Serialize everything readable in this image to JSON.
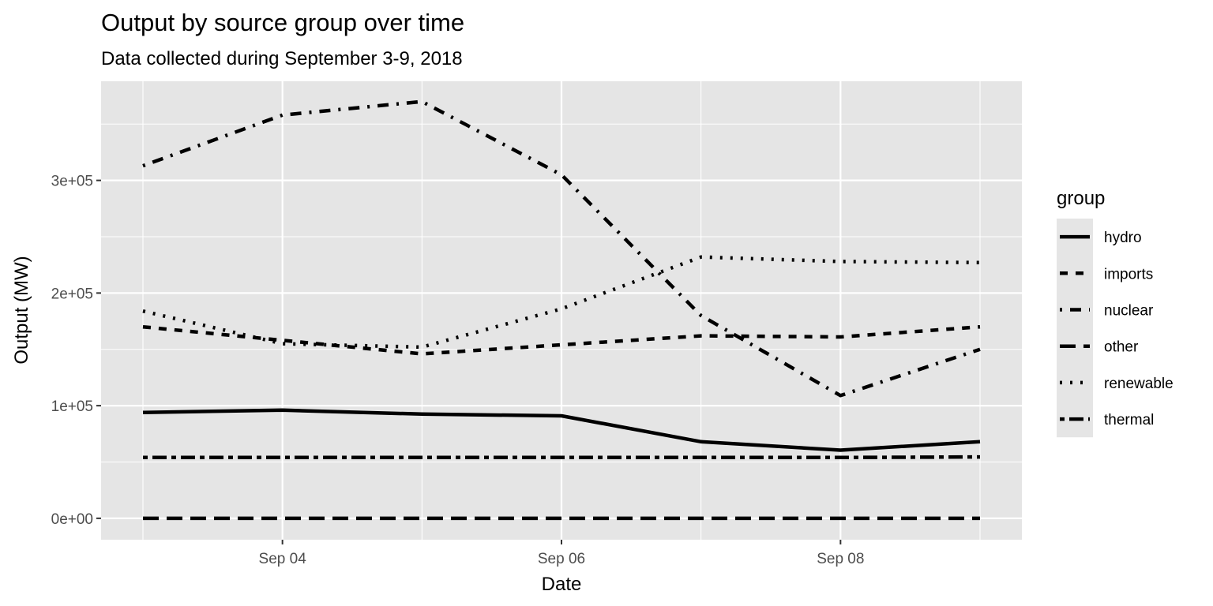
{
  "chart_data": {
    "type": "line",
    "title": "Output by source group over time",
    "subtitle": "Data collected during September 3-9, 2018",
    "xlabel": "Date",
    "ylabel": "Output (MW)",
    "x": [
      "2018-09-03",
      "2018-09-04",
      "2018-09-05",
      "2018-09-06",
      "2018-09-07",
      "2018-09-08",
      "2018-09-09"
    ],
    "x_ticks": [
      {
        "value": "2018-09-04",
        "label": "Sep 04"
      },
      {
        "value": "2018-09-06",
        "label": "Sep 06"
      },
      {
        "value": "2018-09-08",
        "label": "Sep 08"
      }
    ],
    "y_ticks": [
      {
        "value": 0,
        "label": "0e+00"
      },
      {
        "value": 100000,
        "label": "1e+05"
      },
      {
        "value": 200000,
        "label": "2e+05"
      },
      {
        "value": 300000,
        "label": "3e+05"
      }
    ],
    "ylim": [
      -19000,
      388000
    ],
    "xlim": [
      "2018-09-02T16:48",
      "2018-09-09T07:12"
    ],
    "grid": true,
    "legend": {
      "title": "group",
      "position": "right"
    },
    "series": [
      {
        "name": "hydro",
        "linetype": "solid",
        "values": [
          94000,
          96000,
          92500,
          91000,
          68000,
          60500,
          68000
        ]
      },
      {
        "name": "imports",
        "linetype": "dashed",
        "values": [
          170000,
          158000,
          146000,
          154000,
          162000,
          161000,
          170000
        ]
      },
      {
        "name": "nuclear",
        "linetype": "dotdash",
        "values": [
          313000,
          358000,
          370000,
          305000,
          180000,
          109000,
          150000
        ]
      },
      {
        "name": "other",
        "linetype": "longdash",
        "values": [
          0,
          0,
          0,
          0,
          0,
          0,
          0
        ]
      },
      {
        "name": "renewable",
        "linetype": "dotted",
        "values": [
          184000,
          155000,
          152000,
          186000,
          232000,
          228000,
          227000
        ]
      },
      {
        "name": "thermal",
        "linetype": "twodash",
        "values": [
          54000,
          54000,
          54000,
          54000,
          54000,
          54000,
          54500
        ]
      }
    ],
    "colors": {
      "panel_bg": "#e5e5e5",
      "grid": "#ffffff",
      "line": "#000000",
      "tick_text": "#4d4d4d",
      "legend_key_bg": "#e5e5e5"
    }
  }
}
